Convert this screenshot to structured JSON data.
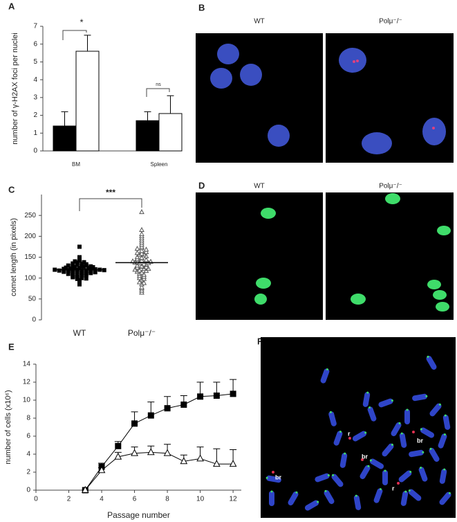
{
  "chart_data": [
    {
      "panel": "A",
      "type": "bar",
      "ylabel": "number of γ-H2AX foci per nuclei",
      "categories": [
        "BM",
        "Spleen"
      ],
      "series": [
        {
          "color": "#000000",
          "values": [
            1.4,
            1.7
          ],
          "errors": [
            0.8,
            0.5
          ]
        },
        {
          "color": "#ffffff",
          "values": [
            5.6,
            2.1
          ],
          "errors": [
            0.9,
            1.0
          ]
        }
      ],
      "ylim": [
        0,
        7
      ],
      "yticks": [
        0,
        1,
        2,
        3,
        4,
        5,
        6,
        7
      ],
      "annotations": [
        "*",
        "ns"
      ]
    },
    {
      "panel": "C",
      "type": "strip",
      "ylabel": "comet length (in pixels)",
      "categories": [
        "WT",
        "Polμ⁻/⁻"
      ],
      "series": [
        {
          "marker": "square",
          "color": "#000000",
          "mean": 120,
          "values": [
            120,
            118,
            122,
            115,
            125,
            110,
            130,
            105,
            135,
            112,
            128,
            117,
            123,
            119,
            121,
            108,
            132,
            102,
            140,
            98,
            114,
            126,
            116,
            124,
            111,
            129,
            113,
            127,
            120,
            119,
            95,
            145,
            103,
            137,
            109,
            131,
            90,
            150,
            118,
            122,
            106,
            134,
            100,
            142,
            85,
            175,
            121,
            117,
            124,
            116,
            126,
            114,
            128,
            112,
            107,
            133,
            99,
            138,
            120,
            119
          ]
        },
        {
          "marker": "triangle-open",
          "color": "#555555",
          "mean": 137,
          "values": [
            137,
            130,
            145,
            125,
            150,
            120,
            155,
            115,
            160,
            110,
            165,
            105,
            170,
            100,
            140,
            135,
            128,
            148,
            118,
            158,
            108,
            175,
            95,
            185,
            90,
            195,
            85,
            205,
            75,
            215,
            65,
            258,
            138,
            132,
            142,
            127,
            152,
            122,
            147,
            113,
            162,
            103,
            172,
            98,
            180,
            88,
            190,
            78,
            200,
            70,
            142,
            133,
            139,
            126,
            156,
            117,
            168,
            122,
            143,
            136
          ]
        }
      ],
      "ylim": [
        0,
        300
      ],
      "yticks": [
        0,
        50,
        100,
        150,
        200,
        250
      ],
      "annotations": [
        "***"
      ]
    },
    {
      "panel": "E",
      "type": "line",
      "xlabel": "Passage number",
      "ylabel": "number of cells (x10⁶)",
      "x": [
        3,
        4,
        5,
        6,
        7,
        8,
        9,
        10,
        11,
        12
      ],
      "series": [
        {
          "marker": "square",
          "color": "#000000",
          "values": [
            0,
            2.6,
            4.9,
            7.4,
            8.3,
            9.1,
            9.5,
            10.4,
            10.5,
            10.7
          ],
          "errors": [
            0,
            0.4,
            0.5,
            1.3,
            1.5,
            1.3,
            1.0,
            1.6,
            1.5,
            1.6
          ]
        },
        {
          "marker": "triangle-open",
          "color": "#000000",
          "values": [
            0,
            2.2,
            3.7,
            4.1,
            4.2,
            4.1,
            3.2,
            3.5,
            2.9,
            2.9
          ],
          "errors": [
            0,
            0.3,
            0.5,
            0.7,
            0.7,
            1.0,
            0.7,
            1.3,
            1.7,
            1.6
          ]
        }
      ],
      "xlim": [
        0,
        12.5
      ],
      "xticks": [
        0,
        2,
        4,
        6,
        8,
        10,
        12
      ],
      "ylim": [
        0,
        14
      ],
      "yticks": [
        0,
        2,
        4,
        6,
        8,
        10,
        12,
        14
      ]
    }
  ],
  "images": [
    {
      "panel": "B",
      "labels": [
        "WT",
        "Polμ⁻/⁻"
      ]
    },
    {
      "panel": "D",
      "labels": [
        "WT",
        "Polμ⁻/⁻"
      ]
    },
    {
      "panel": "F",
      "annotations": [
        "r",
        "br",
        "br",
        "br",
        "r"
      ]
    }
  ]
}
